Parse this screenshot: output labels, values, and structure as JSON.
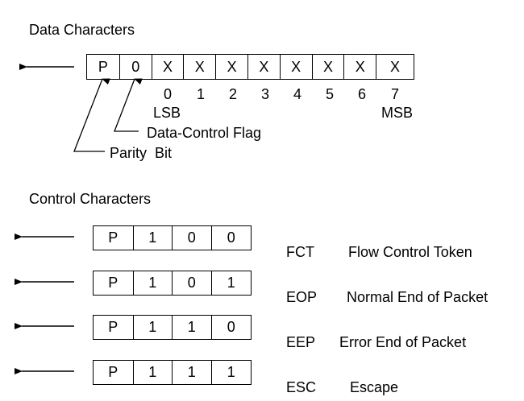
{
  "data_section": {
    "title": "Data Characters",
    "bits": [
      "P",
      "0",
      "X",
      "X",
      "X",
      "X",
      "X",
      "X",
      "X",
      "X"
    ],
    "bit_numbers": [
      "0",
      "1",
      "2",
      "3",
      "4",
      "5",
      "6",
      "7"
    ],
    "lsb_label": "LSB",
    "msb_label": "MSB",
    "data_control_flag_label": "Data-Control Flag",
    "parity_bit_label": "Parity  Bit"
  },
  "control_section": {
    "title": "Control Characters",
    "rows": [
      {
        "bits": [
          "P",
          "1",
          "0",
          "0"
        ],
        "code": "FCT",
        "description": "Flow Control Token"
      },
      {
        "bits": [
          "P",
          "1",
          "0",
          "1"
        ],
        "code": "EOP",
        "description": "Normal End of Packet"
      },
      {
        "bits": [
          "P",
          "1",
          "1",
          "0"
        ],
        "code": "EEP",
        "description": "Error End of Packet"
      },
      {
        "bits": [
          "P",
          "1",
          "1",
          "1"
        ],
        "code": "ESC",
        "description": "Escape"
      }
    ]
  }
}
